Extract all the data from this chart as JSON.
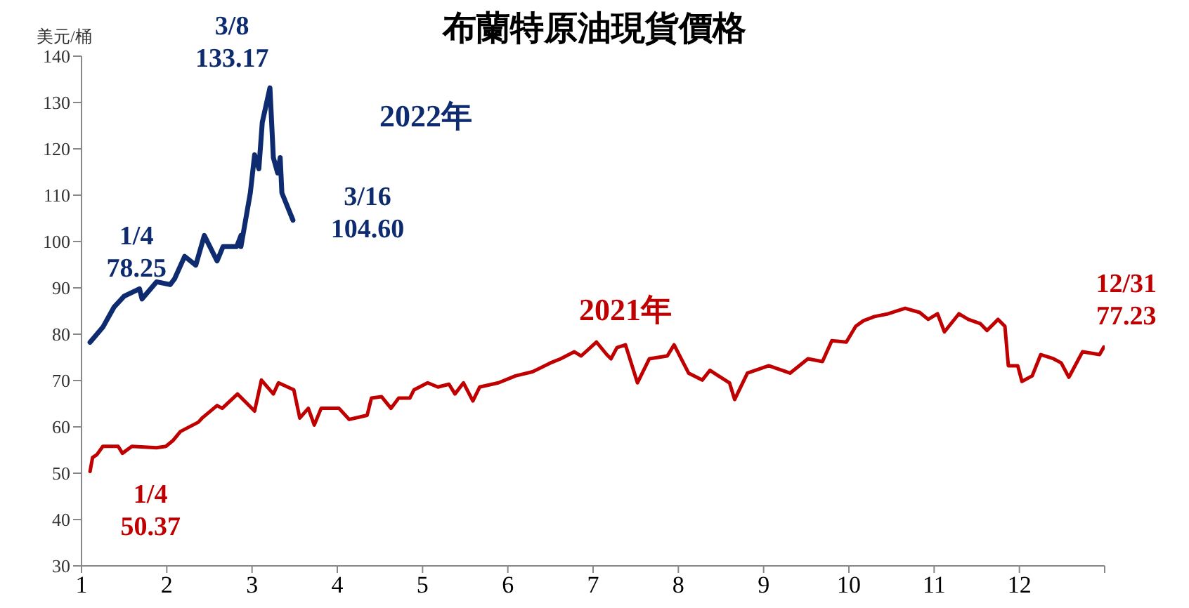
{
  "chart_data": {
    "type": "line",
    "title": "布蘭特原油現貨價格",
    "ylabel": "美元/桶",
    "xlim": [
      1,
      13
    ],
    "xticks": [
      1,
      2,
      3,
      4,
      5,
      6,
      7,
      8,
      9,
      10,
      11,
      12,
      {
        "value": 13,
        "label": null
      }
    ],
    "ylim": [
      30,
      140
    ],
    "yticks": [
      30,
      40,
      50,
      60,
      70,
      80,
      90,
      100,
      110,
      120,
      130,
      140
    ],
    "grid": false,
    "marker": "none",
    "line_style": "solid",
    "series": [
      {
        "name": "2022年",
        "color": "#0d2b6e",
        "x": [
          1.1,
          1.25,
          1.38,
          1.5,
          1.68,
          1.71,
          1.88,
          2.04,
          2.09,
          2.21,
          2.34,
          2.44,
          2.59,
          2.66,
          2.82,
          2.87,
          2.87,
          2.98,
          3.03,
          3.08,
          3.12,
          3.21,
          3.25,
          3.3,
          3.33,
          3.35,
          3.48
        ],
        "values": [
          78.25,
          81.5,
          85.8,
          88.2,
          89.8,
          87.6,
          91.3,
          90.7,
          91.9,
          96.8,
          94.9,
          101.3,
          95.8,
          98.9,
          98.9,
          101.3,
          98.9,
          110.5,
          118.7,
          115.7,
          125.7,
          133.17,
          118.1,
          114.8,
          118.1,
          110.5,
          104.6
        ]
      },
      {
        "name": "2021年",
        "color": "#c00000",
        "x": [
          1.1,
          1.13,
          1.18,
          1.25,
          1.43,
          1.48,
          1.59,
          1.88,
          1.99,
          2.07,
          2.16,
          2.37,
          2.42,
          2.59,
          2.65,
          2.83,
          3.03,
          3.11,
          3.25,
          3.31,
          3.49,
          3.56,
          3.66,
          3.73,
          3.81,
          4.02,
          4.14,
          4.35,
          4.4,
          4.52,
          4.63,
          4.72,
          4.85,
          4.9,
          5.06,
          5.18,
          5.31,
          5.38,
          5.48,
          5.59,
          5.67,
          5.89,
          6.09,
          6.29,
          6.5,
          6.62,
          6.78,
          6.86,
          7.04,
          7.16,
          7.21,
          7.28,
          7.38,
          7.52,
          7.66,
          7.87,
          7.95,
          8.12,
          8.28,
          8.37,
          8.6,
          8.66,
          8.81,
          9.06,
          9.31,
          9.52,
          9.69,
          9.8,
          9.97,
          10.08,
          10.17,
          10.3,
          10.46,
          10.66,
          10.83,
          10.93,
          11.04,
          11.12,
          11.29,
          11.4,
          11.54,
          11.62,
          11.75,
          11.83,
          11.87,
          11.98,
          12.03,
          12.15,
          12.25,
          12.4,
          12.49,
          12.58,
          12.74,
          12.94,
          12.99
        ],
        "values": [
          50.37,
          53.4,
          54,
          55.8,
          55.8,
          54.3,
          55.8,
          55.5,
          55.8,
          57,
          59,
          61,
          62,
          64.6,
          64,
          67.1,
          63.4,
          70.1,
          67.1,
          69.5,
          68,
          61.9,
          64,
          60.4,
          64,
          64,
          61.6,
          62.5,
          66.2,
          66.5,
          64,
          66.2,
          66.2,
          68,
          69.5,
          68.6,
          69.2,
          67.1,
          69.5,
          65.6,
          68.6,
          69.5,
          71,
          71.9,
          73.8,
          74.7,
          76.2,
          75.3,
          78.3,
          75.6,
          74.7,
          77.1,
          77.7,
          69.5,
          74.7,
          75.3,
          77.7,
          71.6,
          70.1,
          72.2,
          69.5,
          65.9,
          71.6,
          73.2,
          71.6,
          74.7,
          74.1,
          78.6,
          78.3,
          81.7,
          82.9,
          83.8,
          84.4,
          85.6,
          84.7,
          83.2,
          84.4,
          80.5,
          84.4,
          83.2,
          82.3,
          80.8,
          83.2,
          81.7,
          73.2,
          73.2,
          69.8,
          71,
          75.6,
          74.7,
          73.8,
          70.7,
          76.2,
          75.6,
          77.23
        ]
      }
    ],
    "annotations": [
      {
        "text": "1/4\n78.25",
        "x": 1.1,
        "y": 78.25
      },
      {
        "text": "3/8\n133.17",
        "x": 3.21,
        "y": 133.17
      },
      {
        "text": "3/16\n104.60",
        "x": 3.48,
        "y": 104.6
      },
      {
        "text": "1/4\n50.37",
        "x": 1.1,
        "y": 50.37
      },
      {
        "text": "12/31\n77.23",
        "x": 12.99,
        "y": 77.23
      }
    ]
  }
}
